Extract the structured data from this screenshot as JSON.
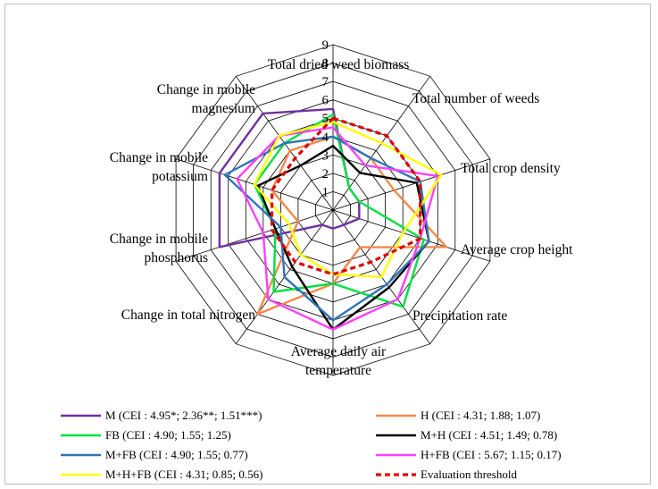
{
  "chart_data": {
    "type": "radar",
    "title": "",
    "rlim": [
      0,
      9
    ],
    "ticks": [
      "1",
      "2",
      "3",
      "4",
      "5",
      "6",
      "7",
      "8",
      "9"
    ],
    "axes": [
      [
        "Total dried weed biomass"
      ],
      [
        "Total number of weeds"
      ],
      [
        "Total crop density"
      ],
      [
        "Average crop height"
      ],
      [
        "Precipitation rate"
      ],
      [
        "Average daily air",
        "temperature"
      ],
      [
        "Change in total nitrogen"
      ],
      [
        "Change in mobile",
        "phosphorus"
      ],
      [
        "Change in mobile",
        "potassium"
      ],
      [
        "Change in mobile",
        "magnesium"
      ]
    ],
    "series": [
      {
        "name": "M (CEI : 4.95*; 2.36**; 1.51***)",
        "color": "#7030a0",
        "dash": false,
        "values": [
          5.5,
          1.5,
          1.5,
          1.5,
          1,
          1,
          1,
          6.5,
          6.5,
          6.5
        ]
      },
      {
        "name": "H (CEI : 4.31; 1.88; 1.07)",
        "color": "#f4894a",
        "dash": false,
        "values": [
          4,
          3.5,
          3.5,
          6.5,
          2.5,
          4,
          7,
          2,
          3.5,
          4
        ]
      },
      {
        "name": "FB (CEI : 4.90; 1.55; 1.25)",
        "color": "#00e040",
        "dash": false,
        "values": [
          5.2,
          1.5,
          1.5,
          5.2,
          6.5,
          4,
          5.5,
          3.3,
          4.5,
          4.5
        ]
      },
      {
        "name": "M+H (CEI : 4.51; 1.49; 0.78)",
        "color": "#000000",
        "dash": false,
        "values": [
          3.5,
          2.5,
          4.8,
          5.5,
          5.2,
          6.5,
          3.8,
          3.3,
          4.3,
          3
        ]
      },
      {
        "name": "M+FB (CEI : 4.90; 1.55; 0.77)",
        "color": "#2e75b6",
        "dash": false,
        "values": [
          4,
          3.5,
          5,
          5.5,
          5,
          6,
          4.5,
          3,
          6.2,
          4.5
        ]
      },
      {
        "name": "H+FB (CEI : 5.67; 1.15; 0.17)",
        "color": "#ff40ff",
        "dash": false,
        "values": [
          4.5,
          3,
          6,
          5,
          6,
          6.5,
          6,
          4,
          5.5,
          5
        ]
      },
      {
        "name": "M+H+FB (CEI : 4.31; 0.85; 0.56)",
        "color": "#ffff00",
        "dash": false,
        "values": [
          4.8,
          4.5,
          6.2,
          4,
          4.5,
          3.5,
          3,
          2.5,
          4.5,
          5
        ]
      },
      {
        "name": "Evaluation threshold",
        "color": "#e00000",
        "dash": true,
        "values": [
          5,
          5,
          5,
          5,
          3.5,
          3.5,
          3.5,
          3.5,
          3.5,
          3.5
        ]
      }
    ]
  }
}
